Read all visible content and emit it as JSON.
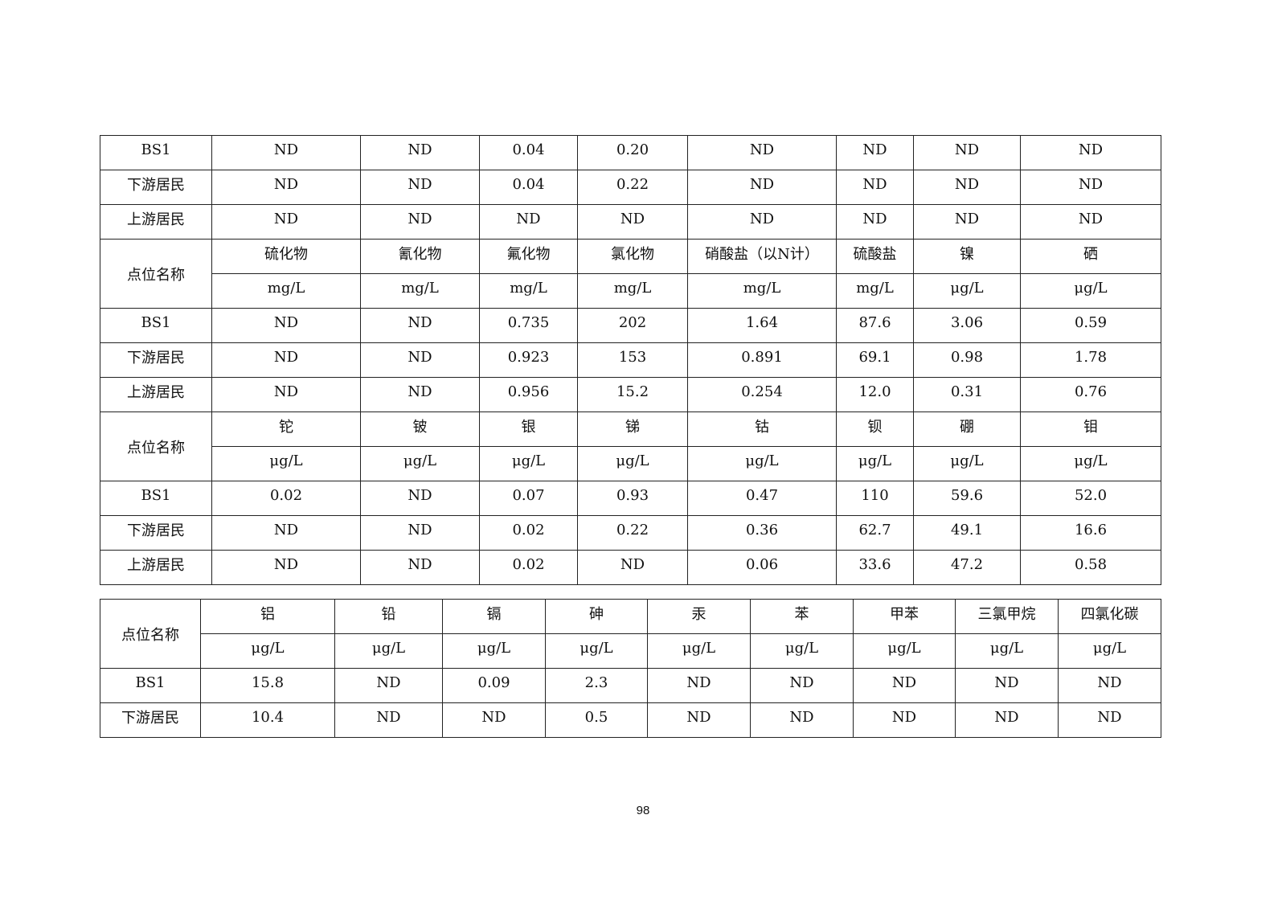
{
  "table1": {
    "rows_top": [
      [
        "BS1",
        "ND",
        "ND",
        "0.04",
        "0.20",
        "ND",
        "ND",
        "ND",
        "ND"
      ],
      [
        "下游居民",
        "ND",
        "ND",
        "0.04",
        "0.22",
        "ND",
        "ND",
        "ND",
        "ND"
      ],
      [
        "上游居民",
        "ND",
        "ND",
        "ND",
        "ND",
        "ND",
        "ND",
        "ND",
        "ND"
      ]
    ],
    "blocks": [
      {
        "label": "点位名称",
        "headers": [
          "硫化物",
          "氰化物",
          "氟化物",
          "氯化物",
          "硝酸盐（以N计）",
          "硫酸盐",
          "镍",
          "硒"
        ],
        "units": [
          "mg/L",
          "mg/L",
          "mg/L",
          "mg/L",
          "mg/L",
          "mg/L",
          "μg/L",
          "μg/L"
        ],
        "rows": [
          [
            "BS1",
            "ND",
            "ND",
            "0.735",
            "202",
            "1.64",
            "87.6",
            "3.06",
            "0.59"
          ],
          [
            "下游居民",
            "ND",
            "ND",
            "0.923",
            "153",
            "0.891",
            "69.1",
            "0.98",
            "1.78"
          ],
          [
            "上游居民",
            "ND",
            "ND",
            "0.956",
            "15.2",
            "0.254",
            "12.0",
            "0.31",
            "0.76"
          ]
        ]
      },
      {
        "label": "点位名称",
        "headers": [
          "铊",
          "铍",
          "银",
          "锑",
          "钴",
          "钡",
          "硼",
          "钼"
        ],
        "units": [
          "μg/L",
          "μg/L",
          "μg/L",
          "μg/L",
          "μg/L",
          "μg/L",
          "μg/L",
          "μg/L"
        ],
        "rows": [
          [
            "BS1",
            "0.02",
            "ND",
            "0.07",
            "0.93",
            "0.47",
            "110",
            "59.6",
            "52.0"
          ],
          [
            "下游居民",
            "ND",
            "ND",
            "0.02",
            "0.22",
            "0.36",
            "62.7",
            "49.1",
            "16.6"
          ],
          [
            "上游居民",
            "ND",
            "ND",
            "0.02",
            "ND",
            "0.06",
            "33.6",
            "47.2",
            "0.58"
          ]
        ]
      }
    ]
  },
  "table2": {
    "label": "点位名称",
    "headers": [
      "铝",
      "铅",
      "镉",
      "砷",
      "汞",
      "苯",
      "甲苯",
      "三氯甲烷",
      "四氯化碳"
    ],
    "units": [
      "μg/L",
      "μg/L",
      "μg/L",
      "μg/L",
      "μg/L",
      "μg/L",
      "μg/L",
      "μg/L",
      "μg/L"
    ],
    "rows": [
      [
        "BS1",
        "15.8",
        "ND",
        "0.09",
        "2.3",
        "ND",
        "ND",
        "ND",
        "ND",
        "ND"
      ],
      [
        "下游居民",
        "10.4",
        "ND",
        "ND",
        "0.5",
        "ND",
        "ND",
        "ND",
        "ND",
        "ND"
      ]
    ]
  },
  "page_number": "98"
}
